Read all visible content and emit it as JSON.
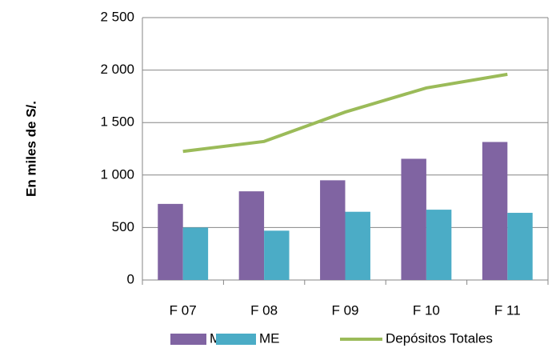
{
  "chart_data": {
    "type": "bar",
    "y_label": "En miles de S/.",
    "categories": [
      "F 07",
      "F 08",
      "F 09",
      "F 10",
      "F 11"
    ],
    "series": [
      {
        "name": "MN",
        "type": "bar",
        "color": "#8064a2",
        "values": [
          725,
          845,
          950,
          1155,
          1315
        ]
      },
      {
        "name": "ME",
        "type": "bar",
        "color": "#4bacc6",
        "values": [
          500,
          470,
          650,
          670,
          640
        ]
      },
      {
        "name": "Depósitos Totales",
        "type": "line",
        "color": "#9bbb59",
        "values": [
          1225,
          1320,
          1600,
          1830,
          1960
        ]
      }
    ],
    "ylim": [
      0,
      2500
    ],
    "yticks": [
      0,
      500,
      {
        "value": 1000,
        "label": "1 000"
      },
      {
        "value": 1500,
        "label": "1 500"
      },
      {
        "value": 2000,
        "label": "2 000"
      },
      {
        "value": 2500,
        "label": "2 500"
      }
    ],
    "grid": true,
    "legend": "bottom"
  }
}
